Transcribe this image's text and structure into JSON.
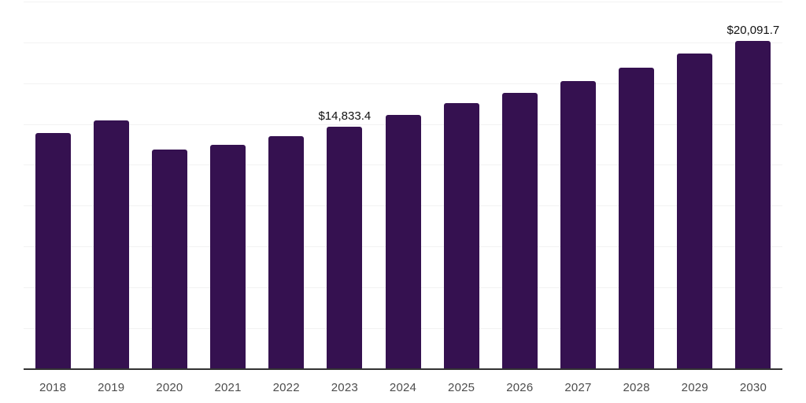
{
  "chart_data": {
    "type": "bar",
    "title": "",
    "xlabel": "",
    "ylabel": "",
    "categories": [
      "2018",
      "2019",
      "2020",
      "2021",
      "2022",
      "2023",
      "2024",
      "2025",
      "2026",
      "2027",
      "2028",
      "2029",
      "2030"
    ],
    "values": [
      14450,
      15200,
      13440,
      13730,
      14260,
      14833.4,
      15560,
      16300,
      16910,
      17630,
      18450,
      19320,
      20091.7
    ],
    "data_labels": [
      {
        "index": 5,
        "text": "$14,833.4"
      },
      {
        "index": 12,
        "text": "$20,091.7"
      }
    ],
    "ylim": [
      0,
      22590
    ],
    "gridline_interval": 2500,
    "grid": true,
    "legend": false,
    "bar_color": "#351150",
    "axis_line_color": "#333333",
    "gridline_color": "#f2f2f2",
    "data_label_color": "#111111",
    "tick_label_color": "#4d4d4d"
  }
}
